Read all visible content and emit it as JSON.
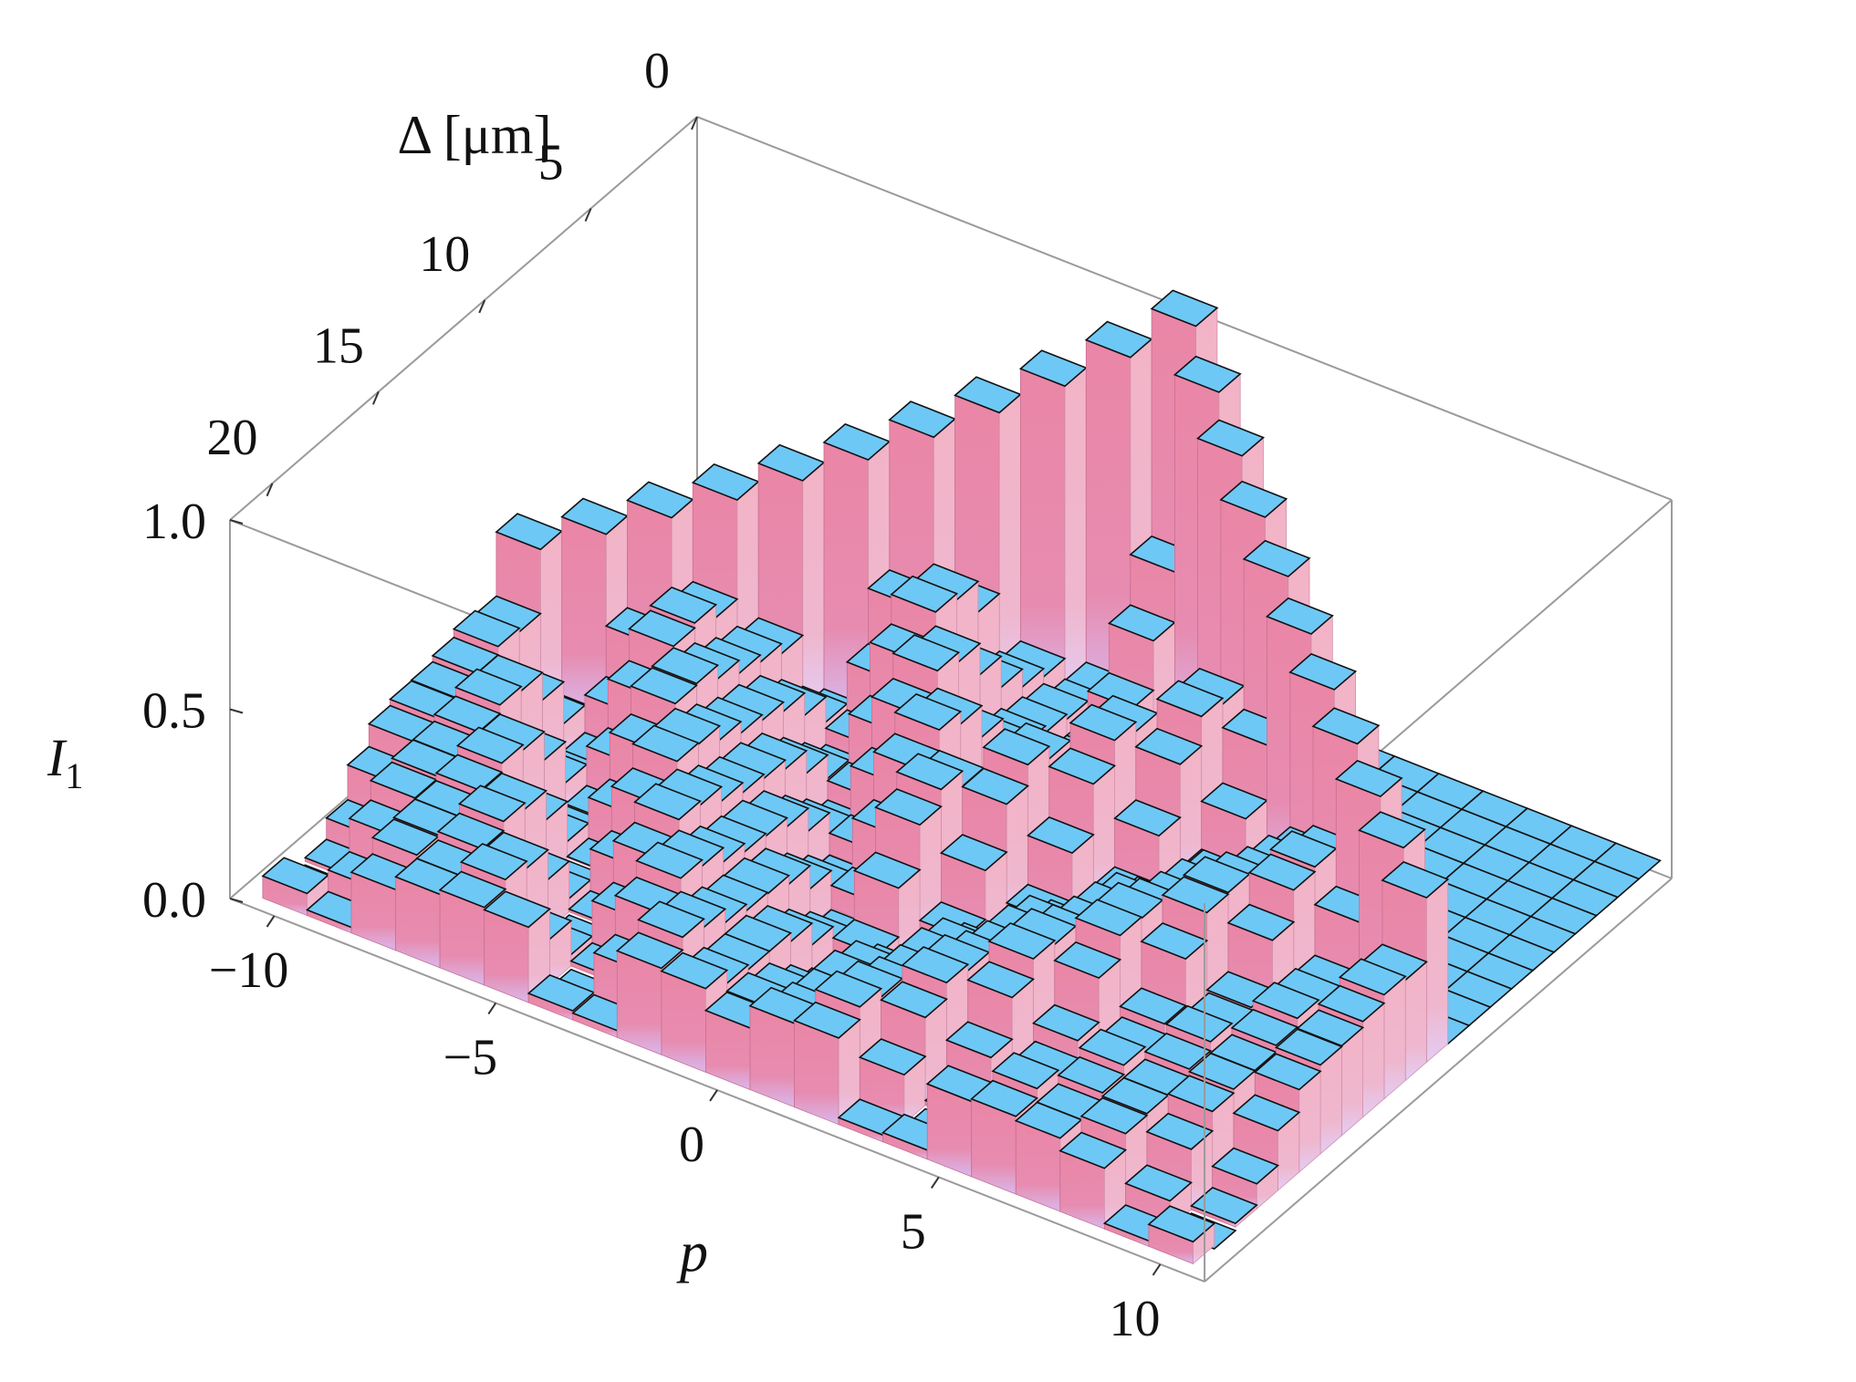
{
  "chart_data": {
    "type": "bar3d",
    "xlabel": "p",
    "ylabel": "Δ [μm]",
    "zlabel_main": "I",
    "zlabel_sub": "1",
    "x_range": [
      -11,
      11
    ],
    "y_range": [
      0,
      22
    ],
    "z_range": [
      0,
      1.0
    ],
    "x_ticks": [
      "−10",
      "−5",
      "0",
      "5",
      "10"
    ],
    "x_tick_values": [
      -10,
      -5,
      0,
      5,
      10
    ],
    "y_ticks": [
      "0",
      "5",
      "10",
      "15",
      "20"
    ],
    "y_tick_values": [
      0,
      5,
      10,
      15,
      20
    ],
    "z_ticks": [
      "0.0",
      "0.5",
      "1.0"
    ],
    "z_tick_values": [
      0,
      0.5,
      1.0
    ],
    "model": "light-cone: at spacing Δ the weight spreads over |p| ≤ Δ; approximate heights read from the figure",
    "colors": {
      "top": "#6ec8f5",
      "front": "#e685a8",
      "side": "#f0b2c6",
      "edge": "#111111",
      "box": "#9a9a9a"
    }
  }
}
